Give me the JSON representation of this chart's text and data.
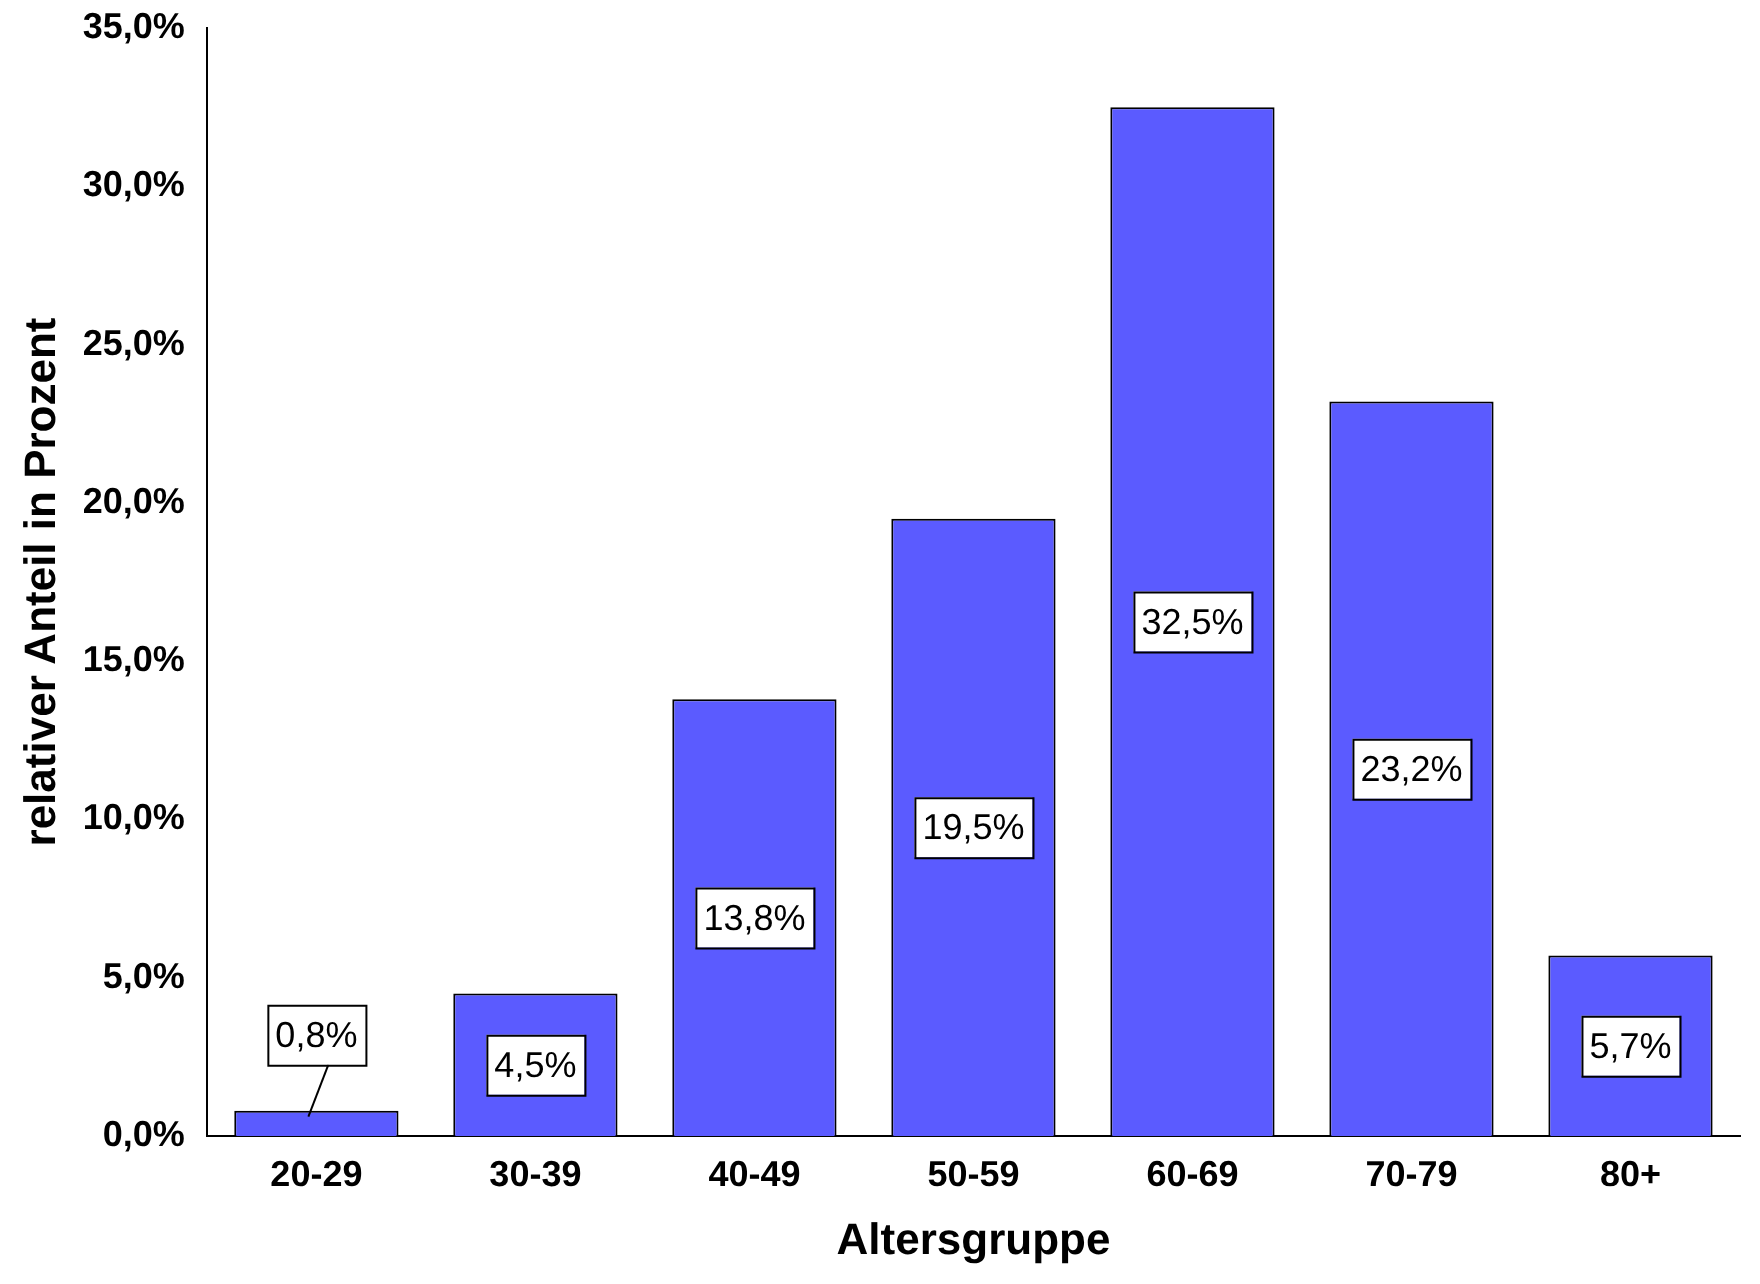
{
  "chart_data": {
    "type": "bar",
    "xlabel": "Altersgruppe",
    "ylabel": "relativer Anteil in Prozent",
    "categories": [
      "20-29",
      "30-39",
      "40-49",
      "50-59",
      "60-69",
      "70-79",
      "80+"
    ],
    "values": [
      0.8,
      4.5,
      13.8,
      19.5,
      32.5,
      23.2,
      5.7
    ],
    "value_labels": [
      "0,8%",
      "4,5%",
      "13,8%",
      "19,5%",
      "32,5%",
      "23,2%",
      "5,7%"
    ],
    "color": "#5b5bff",
    "ylim": [
      0,
      35
    ],
    "yticks": [
      {
        "value": 0,
        "label": "0,0%"
      },
      {
        "value": 5,
        "label": "5,0%"
      },
      {
        "value": 10,
        "label": "10,0%"
      },
      {
        "value": 15,
        "label": "15,0%"
      },
      {
        "value": 20,
        "label": "20,0%"
      },
      {
        "value": 25,
        "label": "25,0%"
      },
      {
        "value": 30,
        "label": "30,0%"
      },
      {
        "value": 35,
        "label": "35,0%"
      }
    ],
    "grid": false,
    "legend": false
  }
}
